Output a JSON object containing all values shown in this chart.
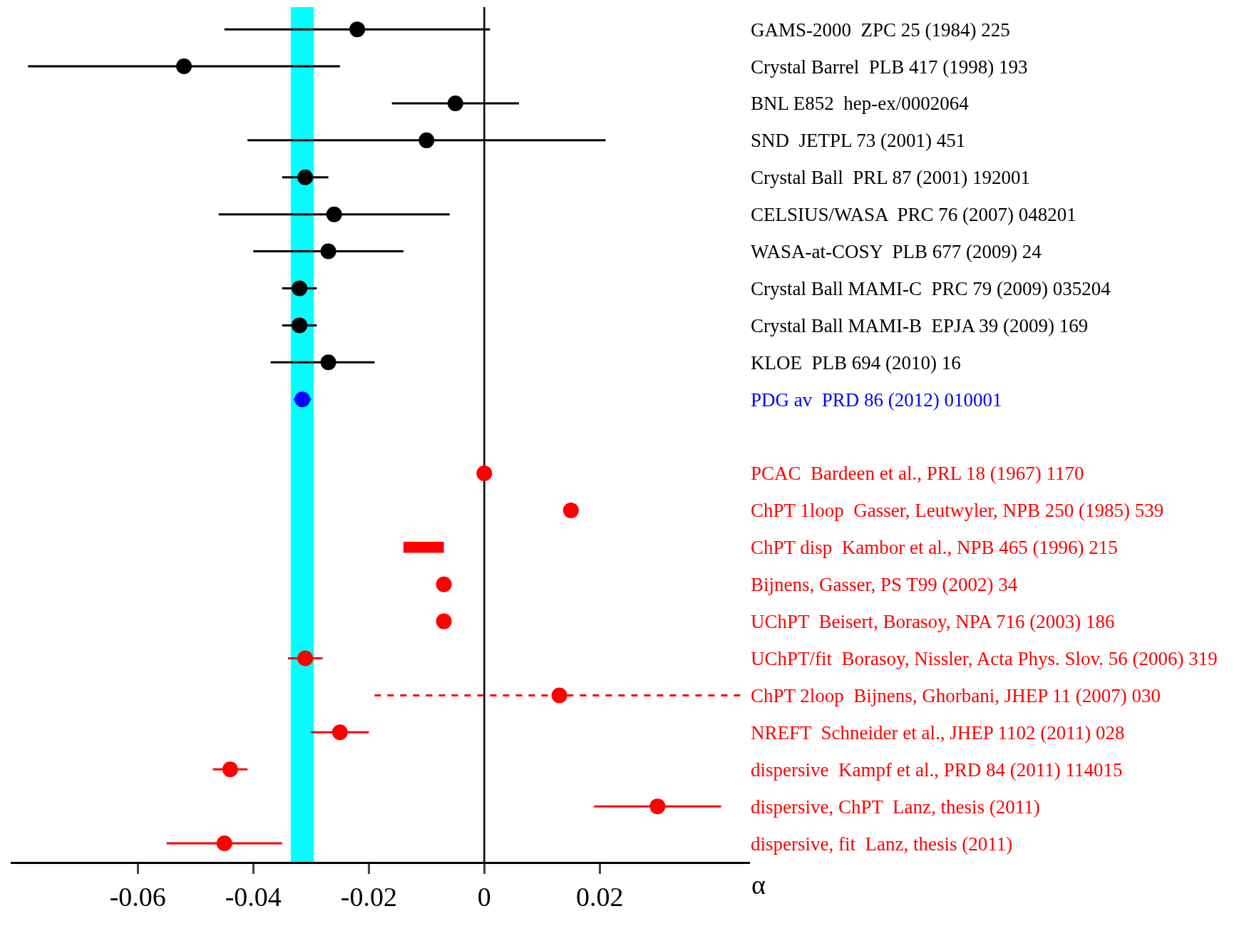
{
  "chart_data": {
    "type": "scatter",
    "orientation": "horizontal",
    "xlabel": "α",
    "marker": "circle",
    "grid": false,
    "tick_labels": "x",
    "categories": [
      "GAMS-2000  ZPC 25 (1984) 225",
      "Crystal Barrel  PLB 417 (1998) 193",
      "BNL E852  hep-ex/0002064",
      "SND  JETPL 73 (2001) 451",
      "Crystal Ball  PRL 87 (2001) 192001",
      "CELSIUS/WASA  PRC 76 (2007) 048201",
      "WASA-at-COSY  PLB 677 (2009) 24",
      "Crystal Ball MAMI-C  PRC 79 (2009) 035204",
      "Crystal Ball MAMI-B  EPJA 39 (2009) 169",
      "KLOE  PLB 694 (2010) 16",
      "PDG av  PRD 86 (2012) 010001",
      null,
      "PCAC  Bardeen et al., PRL 18 (1967) 1170",
      "ChPT 1loop  Gasser, Leutwyler, NPB 250 (1985) 539",
      "ChPT disp  Kambor et al., NPB 465 (1996) 215",
      "Bijnens, Gasser, PS T99 (2002) 34",
      "UChPT  Beisert, Borasoy, NPA 716 (2003) 186",
      "UChPT/fit  Borasoy, Nissler, Acta Phys. Slov. 56 (2006) 319",
      "ChPT 2loop  Bijnens, Ghorbani, JHEP 11 (2007) 030",
      "NREFT  Schneider et al., JHEP 1102 (2011) 028",
      "dispersive  Kampf et al., PRD 84 (2011) 114015",
      "dispersive, ChPT  Lanz, thesis (2011)",
      "dispersive, fit  Lanz, thesis (2011)"
    ],
    "series": [
      {
        "color": "#000000",
        "values": [
          -0.022,
          -0.052,
          -0.005,
          -0.01,
          -0.031,
          -0.026,
          -0.027,
          -0.032,
          -0.032,
          -0.027,
          null,
          null,
          null,
          null,
          null,
          null,
          null,
          null,
          null,
          null,
          null,
          null,
          null
        ],
        "errors": [
          0.023,
          0.027,
          0.011,
          0.031,
          0.004,
          0.02,
          0.013,
          0.003,
          0.003,
          [
            -0.037,
            -0.019
          ],
          null,
          null,
          null,
          null,
          null,
          null,
          null,
          null,
          null,
          null,
          null,
          null,
          null
        ]
      },
      {
        "color": "#0000ff",
        "values": [
          null,
          null,
          null,
          null,
          null,
          null,
          null,
          null,
          null,
          null,
          -0.0315,
          null,
          null,
          null,
          null,
          null,
          null,
          null,
          null,
          null,
          null,
          null,
          null
        ],
        "errors": [
          null,
          null,
          null,
          null,
          null,
          null,
          null,
          null,
          null,
          null,
          0.0015,
          null,
          null,
          null,
          null,
          null,
          null,
          null,
          null,
          null,
          null,
          null,
          null
        ]
      },
      {
        "color": "#ff0000",
        "values": [
          null,
          null,
          null,
          null,
          null,
          null,
          null,
          null,
          null,
          null,
          null,
          null,
          0,
          0.015,
          null,
          -0.007,
          -0.007,
          -0.031,
          null,
          -0.025,
          -0.044,
          0.03,
          -0.045
        ],
        "errors": [
          null,
          null,
          null,
          null,
          null,
          null,
          null,
          null,
          null,
          null,
          null,
          null,
          null,
          null,
          null,
          null,
          null,
          0.003,
          null,
          0.005,
          0.003,
          0.011,
          0.01
        ]
      },
      {
        "type": "bar",
        "color": "#ff0000",
        "values": [
          null,
          null,
          null,
          null,
          null,
          null,
          null,
          null,
          null,
          null,
          null,
          null,
          null,
          null,
          0.007,
          null,
          null,
          null,
          null,
          null,
          null,
          null,
          null
        ],
        "base": [
          null,
          null,
          null,
          null,
          null,
          null,
          null,
          null,
          null,
          null,
          null,
          null,
          null,
          null,
          -0.014,
          null,
          null,
          null,
          null,
          null,
          null,
          null,
          null
        ]
      },
      {
        "color": "#ff0000",
        "line_style": "dashed",
        "values": [
          null,
          null,
          null,
          null,
          null,
          null,
          null,
          null,
          null,
          null,
          null,
          null,
          null,
          null,
          null,
          null,
          null,
          null,
          0.013,
          null,
          null,
          null,
          null
        ],
        "errors": [
          null,
          null,
          null,
          null,
          null,
          null,
          null,
          null,
          null,
          null,
          null,
          null,
          null,
          null,
          null,
          null,
          null,
          null,
          0.032,
          null,
          null,
          null,
          null
        ]
      }
    ],
    "xlim": [
      -0.082,
      0.046
    ],
    "xticks": [
      -0.06,
      -0.04,
      -0.02,
      0,
      0.02
    ],
    "bands": [
      {
        "axis": "x",
        "from": -0.0335,
        "to": -0.0295,
        "color": "#00ffff"
      }
    ],
    "ref_lines": [
      {
        "axis": "x",
        "value": 0,
        "color": "#000000"
      }
    ]
  }
}
